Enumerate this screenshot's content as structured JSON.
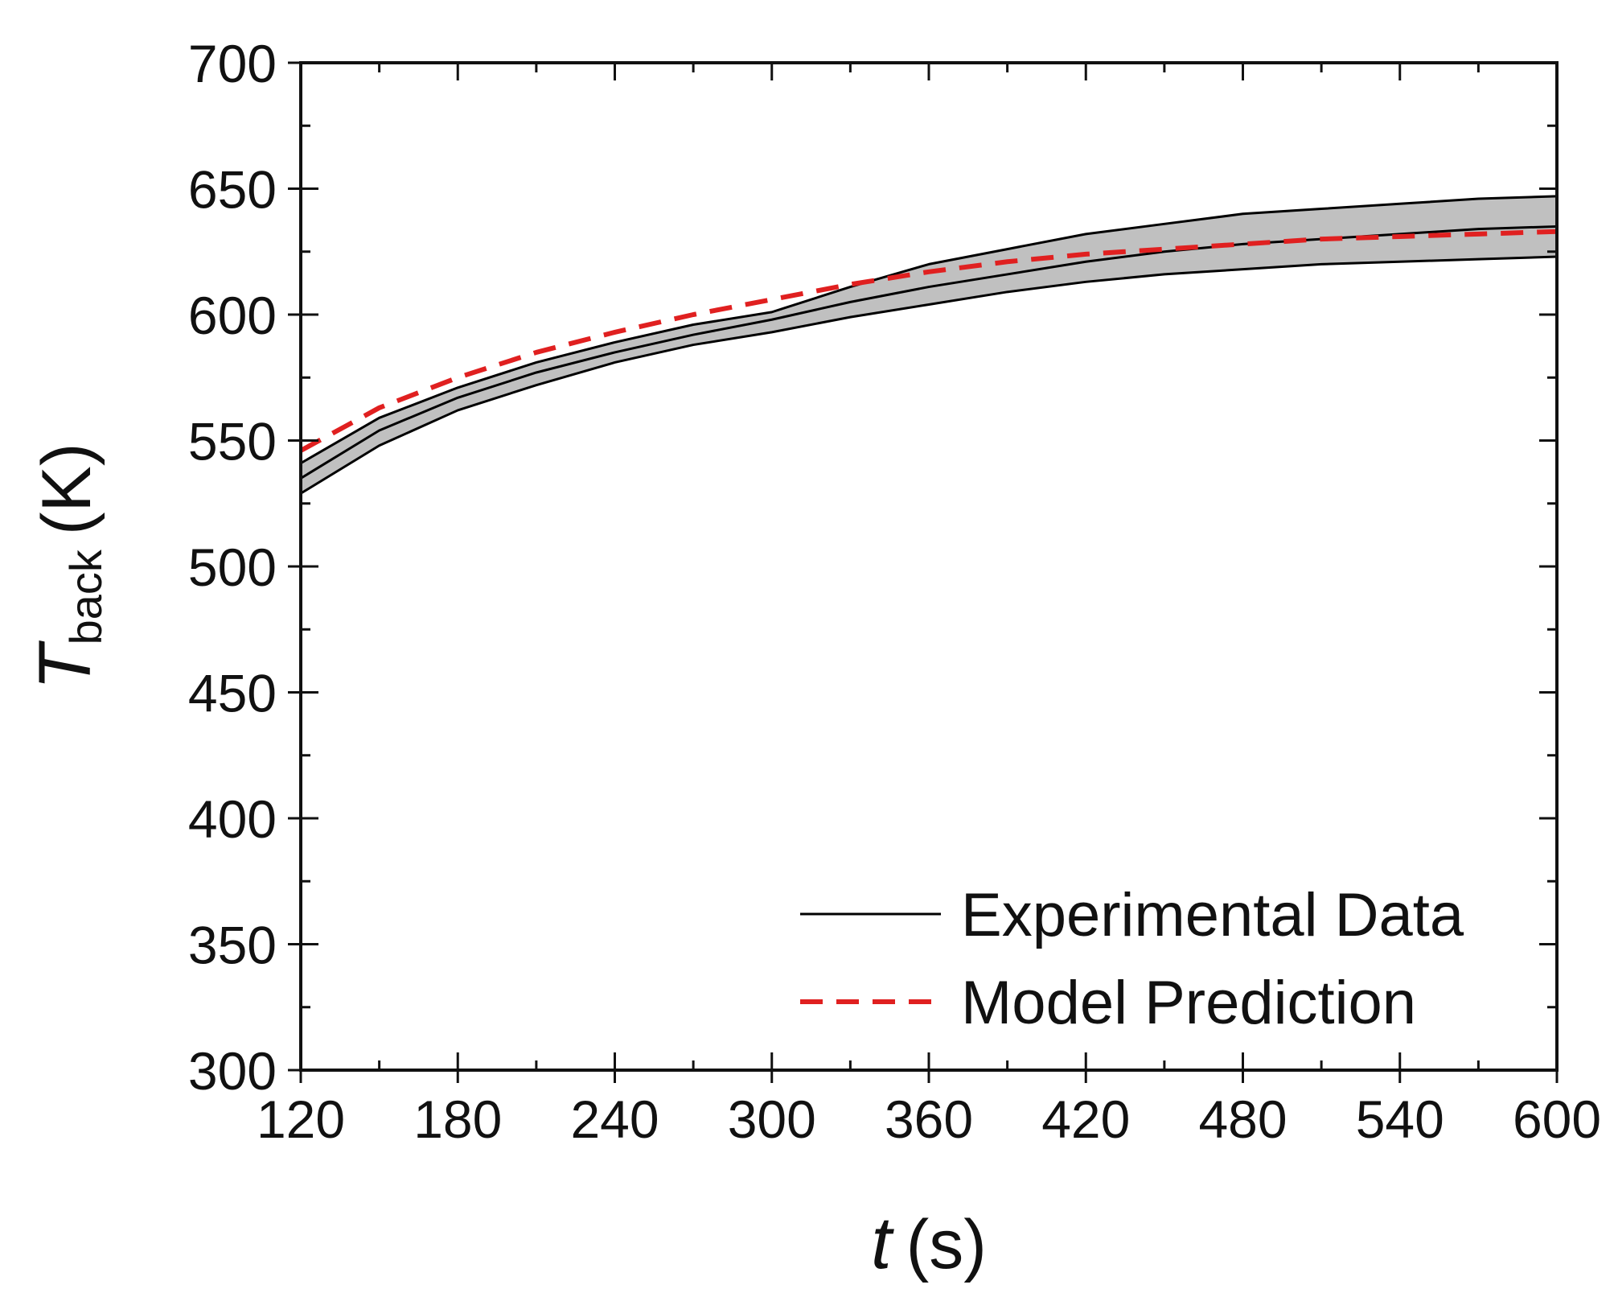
{
  "chart_data": {
    "type": "line",
    "x_axis": {
      "label_symbol": "t",
      "label_unit": "(s)",
      "range": [
        120,
        600
      ],
      "ticks": [
        "120",
        "180",
        "240",
        "300",
        "360",
        "420",
        "480",
        "540",
        "600"
      ]
    },
    "y_axis": {
      "label_symbol": "T",
      "label_subscript": "back",
      "label_unit": "(K)",
      "range": [
        300,
        700
      ],
      "ticks": [
        "300",
        "350",
        "400",
        "450",
        "500",
        "550",
        "600",
        "650",
        "700"
      ]
    },
    "grid": false,
    "legend_position": "bottom-right",
    "legend": [
      {
        "label": "Experimental Data",
        "style": "solid",
        "color": "#000000"
      },
      {
        "label": "Model Prediction",
        "style": "dashed",
        "color": "#e02020"
      }
    ],
    "x": [
      120,
      150,
      180,
      210,
      240,
      270,
      300,
      330,
      360,
      390,
      420,
      450,
      480,
      510,
      540,
      570,
      600
    ],
    "series": [
      {
        "name": "Experimental Data",
        "color": "#000000",
        "style": "solid",
        "values": [
          535,
          554,
          567,
          577,
          585,
          592,
          598,
          605,
          611,
          616,
          621,
          625,
          628,
          630,
          632,
          634,
          635
        ]
      },
      {
        "name": "Experimental Data upper bound",
        "color": "#000000",
        "style": "solid",
        "values": [
          541,
          559,
          571,
          581,
          589,
          596,
          601,
          611,
          620,
          626,
          632,
          636,
          640,
          642,
          644,
          646,
          647
        ]
      },
      {
        "name": "Experimental Data lower bound",
        "color": "#000000",
        "style": "solid",
        "values": [
          529,
          548,
          562,
          572,
          581,
          588,
          593,
          599,
          604,
          609,
          613,
          616,
          618,
          620,
          621,
          622,
          623
        ]
      },
      {
        "name": "Model Prediction",
        "color": "#e02020",
        "style": "dashed",
        "values": [
          546,
          563,
          575,
          585,
          593,
          600,
          606,
          612,
          617,
          621,
          624,
          626,
          628,
          630,
          631,
          632,
          633
        ]
      }
    ],
    "band_color": "#c0c0c0"
  }
}
